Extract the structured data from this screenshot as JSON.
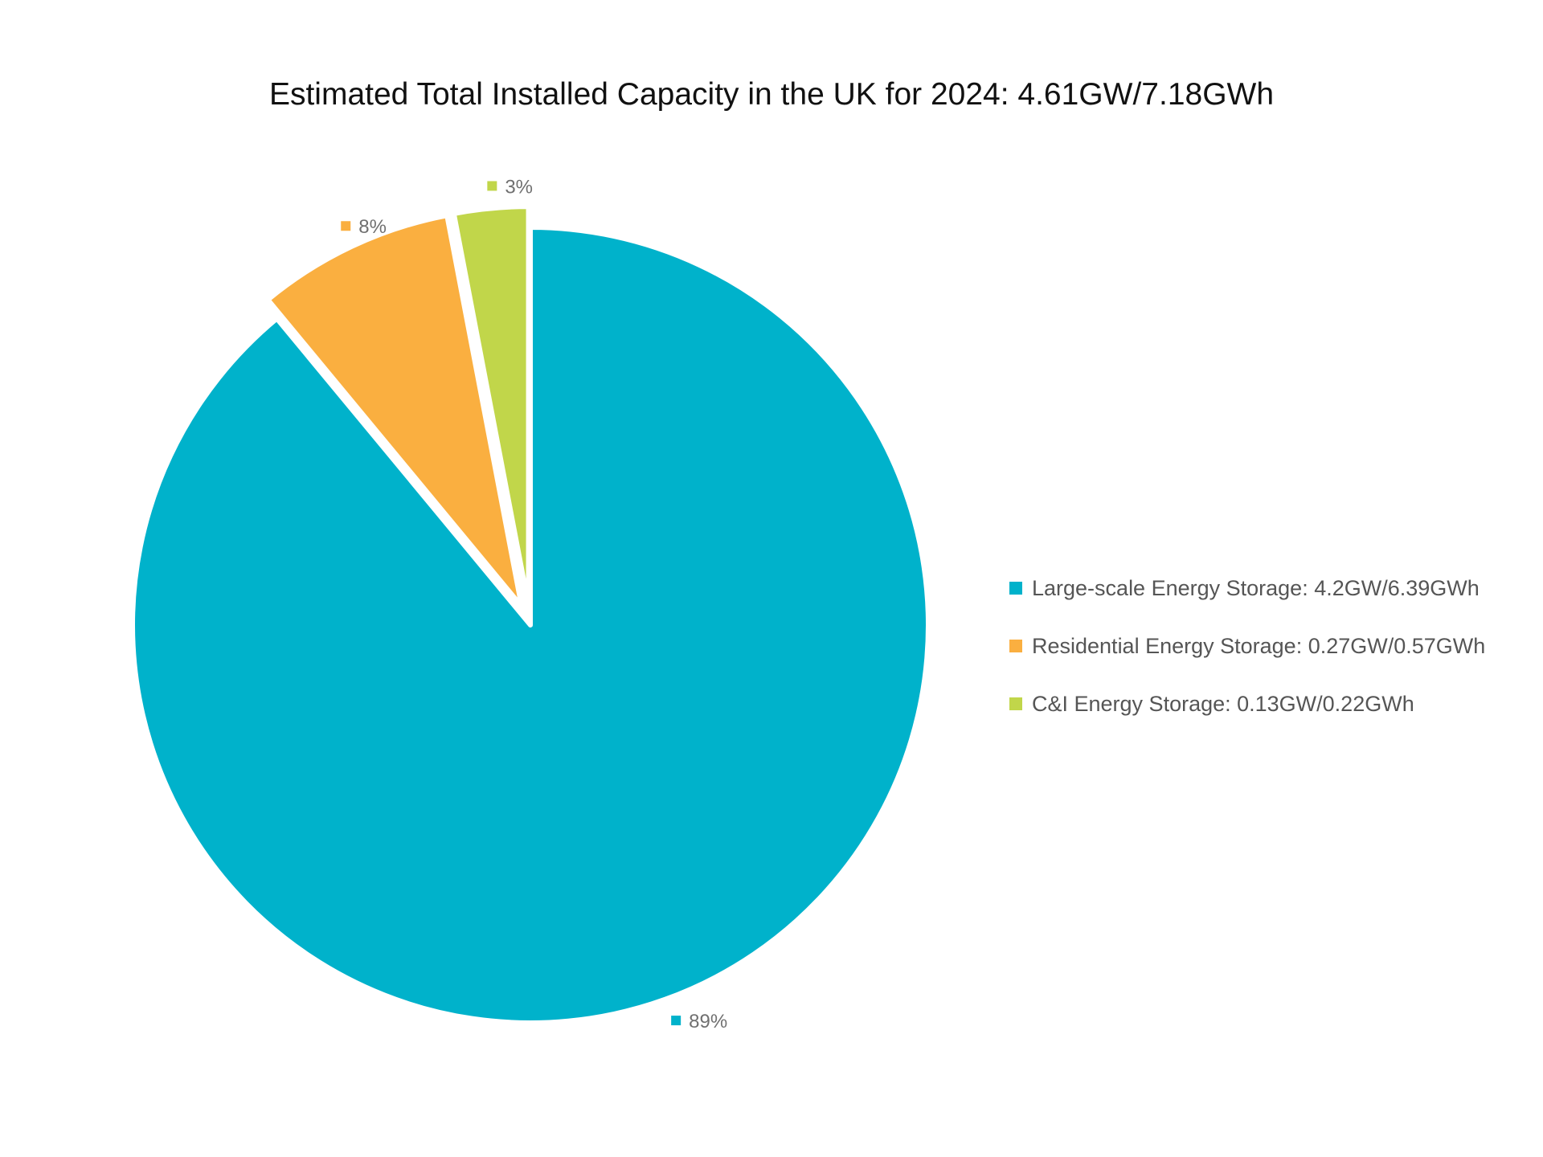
{
  "chart_data": {
    "type": "pie",
    "title": "Estimated Total Installed Capacity in the UK for 2024: 4.61GW/7.18GWh",
    "categories": [
      "Large-scale Energy Storage: 4.2GW/6.39GWh",
      "Residential Energy Storage: 0.27GW/0.57GWh",
      "C&I Energy Storage: 0.13GW/0.22GWh"
    ],
    "values": [
      89,
      8,
      3
    ],
    "data_labels": [
      "89%",
      "8%",
      "3%"
    ],
    "colors": [
      "#00B2CB",
      "#FAAF40",
      "#C1D64A"
    ],
    "legend_position": "right",
    "start_angle": "12 o'clock",
    "direction": "clockwise",
    "exploded": [
      false,
      true,
      true
    ]
  }
}
